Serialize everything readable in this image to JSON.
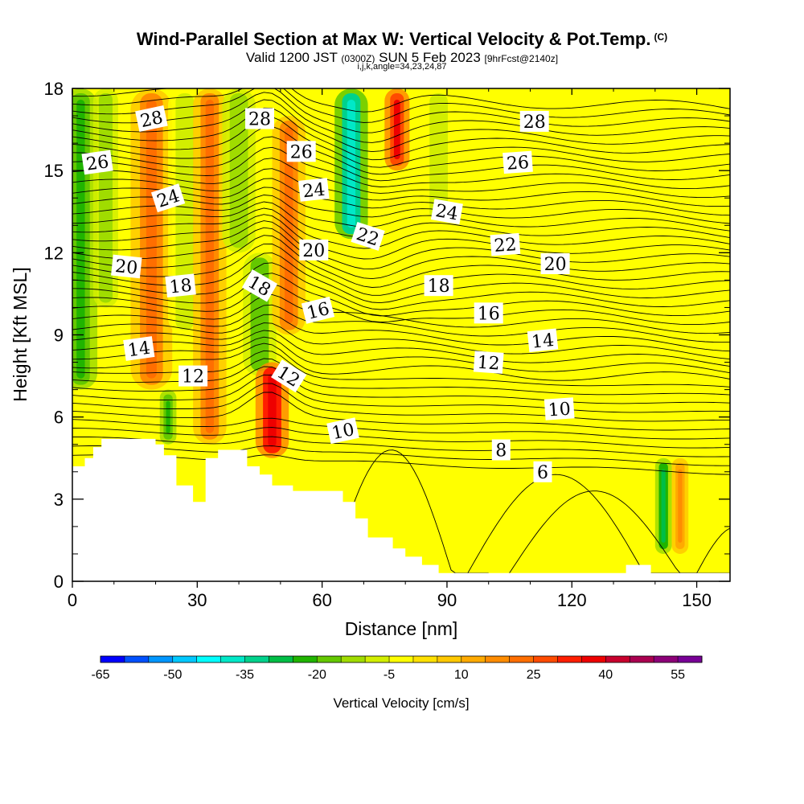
{
  "header": {
    "title": "Wind-Parallel Section at Max W: Vertical Velocity & Pot.Temp.",
    "title_unit": "(C)",
    "valid_prefix": "Valid 1200 JST",
    "valid_utc": "(0300Z)",
    "valid_date": "SUN 5 Feb 2023",
    "forecast_info": "[9hrFcst@2140z]",
    "params": "i,j,k,angle=34,23,24,87"
  },
  "chart_data": {
    "type": "heatmap",
    "xlabel": "Distance [nm]",
    "ylabel": "Height [Kft MSL]",
    "xlim": [
      0,
      158
    ],
    "ylim": [
      0,
      18
    ],
    "x_ticks": [
      0,
      30,
      60,
      90,
      120,
      150
    ],
    "y_ticks": [
      0,
      3,
      6,
      9,
      12,
      15,
      18
    ],
    "grid": false,
    "terrain_profile_kft": [
      [
        0,
        4.2
      ],
      [
        3,
        4.2
      ],
      [
        3,
        4.5
      ],
      [
        5,
        4.5
      ],
      [
        5,
        4.9
      ],
      [
        7,
        4.9
      ],
      [
        7,
        5.2
      ],
      [
        20,
        5.2
      ],
      [
        20,
        5.0
      ],
      [
        22,
        5.0
      ],
      [
        22,
        4.6
      ],
      [
        25,
        4.6
      ],
      [
        25,
        3.5
      ],
      [
        29,
        3.5
      ],
      [
        29,
        2.9
      ],
      [
        32,
        2.9
      ],
      [
        32,
        4.5
      ],
      [
        35,
        4.5
      ],
      [
        35,
        4.8
      ],
      [
        42,
        4.8
      ],
      [
        42,
        4.2
      ],
      [
        45,
        4.2
      ],
      [
        45,
        3.9
      ],
      [
        48,
        3.9
      ],
      [
        48,
        3.5
      ],
      [
        53,
        3.5
      ],
      [
        53,
        3.3
      ],
      [
        65,
        3.3
      ],
      [
        65,
        2.9
      ],
      [
        68,
        2.9
      ],
      [
        68,
        2.3
      ],
      [
        71,
        2.3
      ],
      [
        71,
        1.6
      ],
      [
        77,
        1.6
      ],
      [
        77,
        1.2
      ],
      [
        80,
        1.2
      ],
      [
        80,
        0.9
      ],
      [
        84,
        0.9
      ],
      [
        84,
        0.6
      ],
      [
        88,
        0.6
      ],
      [
        88,
        0.3
      ],
      [
        133,
        0.3
      ],
      [
        133,
        0.6
      ],
      [
        139,
        0.6
      ],
      [
        139,
        0.3
      ],
      [
        158,
        0.3
      ]
    ],
    "colorbar": {
      "label": "Vertical Velocity [cm/s]",
      "tick_labels": [
        "-65",
        "-50",
        "-35",
        "-20",
        "-5",
        "10",
        "25",
        "40",
        "55"
      ],
      "levels_min": -65,
      "levels_max": 60,
      "step": 5,
      "colors": [
        "#0000ff",
        "#0050ff",
        "#0096ff",
        "#00c8ff",
        "#00ffff",
        "#00e8c8",
        "#00d28c",
        "#00be46",
        "#20b400",
        "#64c800",
        "#a0dc00",
        "#d2ee00",
        "#ffff00",
        "#ffe000",
        "#ffc800",
        "#ffaa00",
        "#ff8c00",
        "#ff6e00",
        "#ff4b00",
        "#ff1e00",
        "#ee0000",
        "#c8002d",
        "#aa0050",
        "#8c0078",
        "#780096"
      ]
    },
    "vertical_velocity_bands": [
      {
        "x": 2,
        "y0": 7,
        "y1": 18,
        "w": 4,
        "value": -25
      },
      {
        "x": 8,
        "y0": 10,
        "y1": 18,
        "w": 3,
        "value": -15
      },
      {
        "x": 19,
        "y0": 7,
        "y1": 18,
        "w": 5,
        "value": 22
      },
      {
        "x": 23,
        "y0": 5,
        "y1": 7,
        "w": 2,
        "value": -25
      },
      {
        "x": 27,
        "y0": 9,
        "y1": 18,
        "w": 4,
        "value": -10
      },
      {
        "x": 33,
        "y0": 5,
        "y1": 18,
        "w": 4,
        "value": 20
      },
      {
        "x": 40,
        "y0": 12,
        "y1": 18,
        "w": 4,
        "value": -15
      },
      {
        "x": 45,
        "y0": 7.5,
        "y1": 12,
        "w": 4,
        "value": -20
      },
      {
        "x": 48,
        "y0": 4.5,
        "y1": 8,
        "w": 4,
        "value": 38
      },
      {
        "x": 52,
        "y0": 9,
        "y1": 17,
        "w": 4,
        "value": 22
      },
      {
        "x": 67,
        "y0": 12.5,
        "y1": 18,
        "w": 4,
        "value": -40
      },
      {
        "x": 78,
        "y0": 15,
        "y1": 18,
        "w": 3,
        "value": 35
      },
      {
        "x": 88,
        "y0": 13,
        "y1": 18,
        "w": 4,
        "value": -10
      },
      {
        "x": 142,
        "y0": 1,
        "y1": 4.5,
        "w": 2,
        "value": -30
      },
      {
        "x": 146,
        "y0": 1,
        "y1": 4.5,
        "w": 2,
        "value": 18
      }
    ],
    "isentrope_labels": [
      {
        "x": 19,
        "y": 16.9,
        "text": "28",
        "angle": -12
      },
      {
        "x": 45,
        "y": 16.9,
        "text": "28",
        "angle": 0
      },
      {
        "x": 111,
        "y": 16.8,
        "text": "28",
        "angle": 0
      },
      {
        "x": 6,
        "y": 15.3,
        "text": "26",
        "angle": -8
      },
      {
        "x": 55,
        "y": 15.7,
        "text": "26",
        "angle": 0
      },
      {
        "x": 107,
        "y": 15.3,
        "text": "26",
        "angle": -4
      },
      {
        "x": 23,
        "y": 14.0,
        "text": "24",
        "angle": -18
      },
      {
        "x": 58,
        "y": 14.3,
        "text": "24",
        "angle": -6
      },
      {
        "x": 90,
        "y": 13.5,
        "text": "24",
        "angle": 10
      },
      {
        "x": 71,
        "y": 12.6,
        "text": "22",
        "angle": 18
      },
      {
        "x": 104,
        "y": 12.3,
        "text": "22",
        "angle": -4
      },
      {
        "x": 13,
        "y": 11.5,
        "text": "20",
        "angle": 6
      },
      {
        "x": 58,
        "y": 12.1,
        "text": "20",
        "angle": 0
      },
      {
        "x": 116,
        "y": 11.6,
        "text": "20",
        "angle": 0
      },
      {
        "x": 26,
        "y": 10.8,
        "text": "18",
        "angle": -6
      },
      {
        "x": 45,
        "y": 10.8,
        "text": "18",
        "angle": 30
      },
      {
        "x": 88,
        "y": 10.8,
        "text": "18",
        "angle": 0
      },
      {
        "x": 59,
        "y": 9.9,
        "text": "16",
        "angle": -14
      },
      {
        "x": 100,
        "y": 9.8,
        "text": "16",
        "angle": 0
      },
      {
        "x": 16,
        "y": 8.5,
        "text": "14",
        "angle": -8
      },
      {
        "x": 113,
        "y": 8.8,
        "text": "14",
        "angle": -6
      },
      {
        "x": 29,
        "y": 7.5,
        "text": "12",
        "angle": 0
      },
      {
        "x": 52,
        "y": 7.5,
        "text": "12",
        "angle": 32
      },
      {
        "x": 100,
        "y": 8.0,
        "text": "12",
        "angle": 4
      },
      {
        "x": 65,
        "y": 5.5,
        "text": "10",
        "angle": -12
      },
      {
        "x": 117,
        "y": 6.3,
        "text": "10",
        "angle": -4
      },
      {
        "x": 103,
        "y": 4.8,
        "text": "8",
        "angle": 0
      },
      {
        "x": 113,
        "y": 4.0,
        "text": "6",
        "angle": 0
      }
    ]
  }
}
